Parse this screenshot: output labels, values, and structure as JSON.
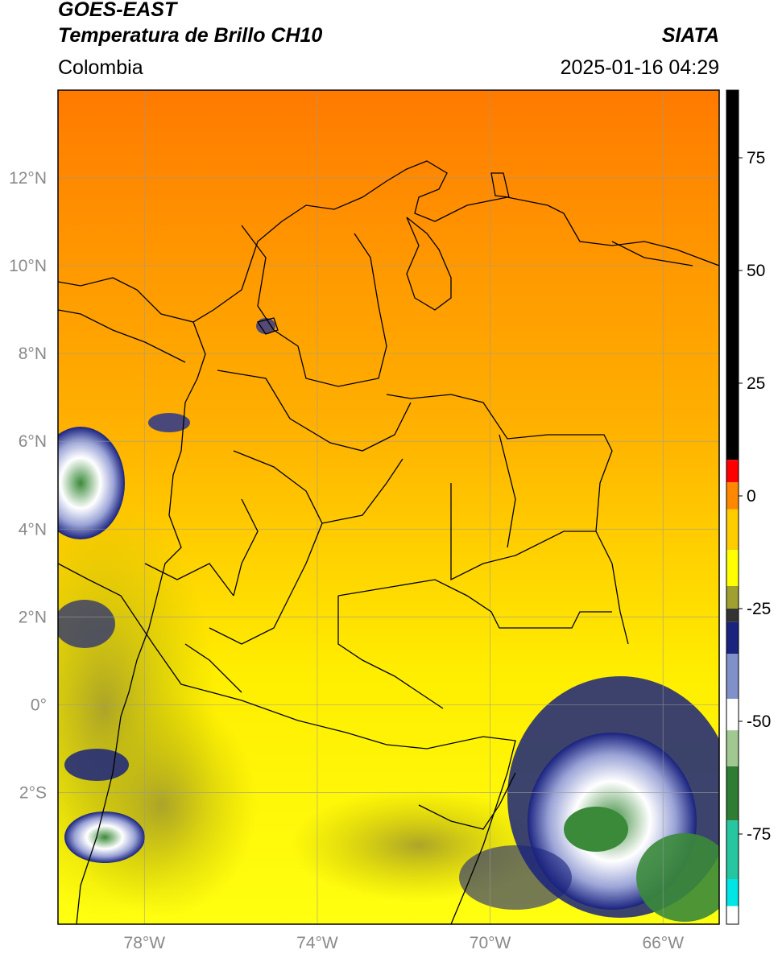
{
  "header": {
    "satellite": "GOES-EAST",
    "product": "Temperatura de Brillo CH10",
    "region": "Colombia",
    "agency": "SIATA",
    "datetime": "2025-01-16 04:29"
  },
  "map": {
    "lon_range": [
      -80.0,
      -64.7
    ],
    "lat_range": [
      -5.0,
      14.0
    ],
    "lat_ticks": [
      {
        "label": "12°N"
      },
      {
        "label": "10°N"
      },
      {
        "label": "8°N"
      },
      {
        "label": "6°N"
      },
      {
        "label": "4°N"
      },
      {
        "label": "2°N"
      },
      {
        "label": "0°"
      },
      {
        "label": "2°S"
      }
    ],
    "lon_ticks": [
      {
        "label": "78°W"
      },
      {
        "label": "74°W"
      },
      {
        "label": "70°W"
      },
      {
        "label": "66°W"
      }
    ],
    "gridlines": true
  },
  "colorbar": {
    "range": [
      -95,
      90
    ],
    "ticks": [
      "75",
      "50",
      "25",
      "0",
      "-25",
      "-50",
      "-75"
    ],
    "colors": {
      "warm_top": "#000000",
      "red": "#ff0000",
      "orange": "#ff8800",
      "yellow": "#ffff00",
      "olive": "#a0a030",
      "navy": "#1a237e",
      "white": "#ffffff",
      "green": "#2e7d32",
      "teal": "#26c6a0",
      "cyan": "#00e5e5"
    }
  }
}
